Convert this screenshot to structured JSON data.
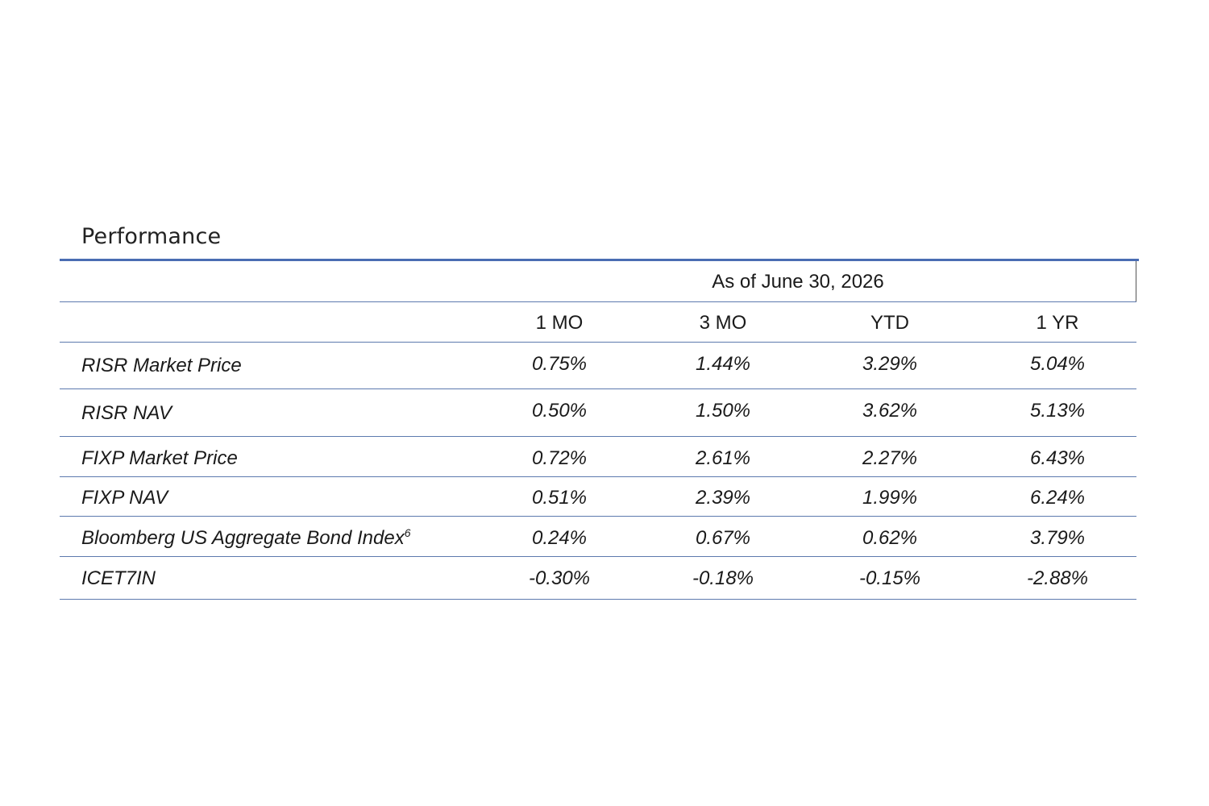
{
  "title": "Performance",
  "as_of": "As of June 30, 2026",
  "columns": [
    "1 MO",
    "3 MO",
    "YTD",
    "1 YR"
  ],
  "rows": [
    {
      "label": "RISR Market Price",
      "sup": "",
      "values": [
        "0.75%",
        "1.44%",
        "3.29%",
        "5.04%"
      ]
    },
    {
      "label": "RISR NAV",
      "sup": "",
      "values": [
        "0.50%",
        "1.50%",
        "3.62%",
        "5.13%"
      ]
    },
    {
      "label": "FIXP Market Price",
      "sup": "",
      "values": [
        "0.72%",
        "2.61%",
        "2.27%",
        "6.43%"
      ]
    },
    {
      "label": "FIXP NAV",
      "sup": "",
      "values": [
        "0.51%",
        "2.39%",
        "1.99%",
        "6.24%"
      ]
    },
    {
      "label": "Bloomberg US Aggregate Bond Index",
      "sup": "6",
      "values": [
        "0.24%",
        "0.67%",
        "0.62%",
        "3.79%"
      ]
    },
    {
      "label": "ICET7IN",
      "sup": "",
      "values": [
        "-0.30%",
        "-0.18%",
        "-0.15%",
        "-2.88%"
      ]
    }
  ],
  "colors": {
    "rule": "#4a6db3",
    "line": "#5d7aae"
  }
}
